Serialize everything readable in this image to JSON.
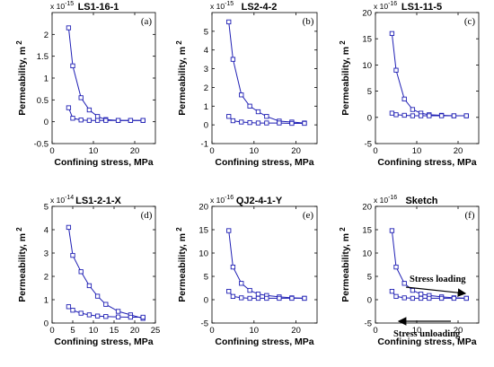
{
  "figure": {
    "panels": [
      {
        "title": "LS1-16-1",
        "tag": "(a)",
        "xlabel": "Confining stress, MPa",
        "ylabel": "Permeability, m",
        "ylabel_sup": "2",
        "exponent": "x 10",
        "exponent_power": "-15"
      },
      {
        "title": "LS2-4-2",
        "tag": "(b)",
        "xlabel": "Confining stress, MPa",
        "ylabel": "Permeability, m",
        "ylabel_sup": "2",
        "exponent": "x 10",
        "exponent_power": "-15"
      },
      {
        "title": "LS1-11-5",
        "tag": "(c)",
        "xlabel": "Confining stress, MPa",
        "ylabel": "Permeability, m",
        "ylabel_sup": "2",
        "exponent": "x 10",
        "exponent_power": "-16"
      },
      {
        "title": "LS1-2-1-X",
        "tag": "(d)",
        "xlabel": "Confining stress, MPa",
        "ylabel": "Permeability, m",
        "ylabel_sup": "2",
        "exponent": "x 10",
        "exponent_power": "-14"
      },
      {
        "title": "QJ2-4-1-Y",
        "tag": "(e)",
        "xlabel": "Confining stress, MPa",
        "ylabel": "Permeability, m",
        "ylabel_sup": "2",
        "exponent": "x 10",
        "exponent_power": "-16"
      },
      {
        "title": "Sketch",
        "tag": "(f)",
        "xlabel": "Confining stress, MPa",
        "ylabel": "Permeability, m",
        "ylabel_sup": "2",
        "exponent": "x 10",
        "exponent_power": "-16",
        "annotations": [
          {
            "text": "Stress loading"
          },
          {
            "text": "Stress unloading"
          }
        ]
      }
    ]
  },
  "chart_data": [
    {
      "type": "line",
      "title": "LS1-16-1",
      "xlabel": "Confining stress, MPa",
      "ylabel": "Permeability, m2",
      "xlim": [
        0,
        25
      ],
      "ylim": [
        -0.5,
        2.5
      ],
      "xticks": [
        0,
        10,
        20
      ],
      "yticks": [
        -0.5,
        0,
        0.5,
        1,
        1.5,
        2
      ],
      "ytick_labels": [
        "-0.5",
        "0",
        "0.5",
        "1",
        "1.5",
        "2"
      ],
      "series": [
        {
          "x": [
            4,
            5,
            7,
            9,
            11,
            13,
            16,
            19,
            22
          ],
          "y": [
            2.15,
            1.28,
            0.55,
            0.27,
            0.12,
            0.05,
            0.03,
            0.03,
            0.03
          ]
        },
        {
          "x": [
            4,
            5,
            7,
            9,
            11,
            13,
            16,
            19,
            22
          ],
          "y": [
            0.32,
            0.08,
            0.04,
            0.03,
            0.03,
            0.03,
            0.03,
            0.03,
            0.03
          ]
        }
      ],
      "marker": "square",
      "color": "#1f1fb4",
      "grid": false
    },
    {
      "type": "line",
      "title": "LS2-4-2",
      "xlabel": "Confining stress, MPa",
      "ylabel": "Permeability, m2",
      "xlim": [
        0,
        25
      ],
      "ylim": [
        -1,
        6
      ],
      "xticks": [
        0,
        10,
        20
      ],
      "yticks": [
        -1,
        0,
        1,
        2,
        3,
        4,
        5
      ],
      "ytick_labels": [
        "-1",
        "0",
        "1",
        "2",
        "3",
        "4",
        "5"
      ],
      "series": [
        {
          "x": [
            4,
            5,
            7,
            9,
            11,
            13,
            16,
            19,
            22
          ],
          "y": [
            5.5,
            3.5,
            1.6,
            1.0,
            0.7,
            0.45,
            0.2,
            0.15,
            0.1
          ]
        },
        {
          "x": [
            4,
            5,
            7,
            9,
            11,
            13,
            16,
            19,
            22
          ],
          "y": [
            0.45,
            0.22,
            0.15,
            0.12,
            0.1,
            0.1,
            0.1,
            0.08,
            0.08
          ]
        }
      ],
      "marker": "square",
      "color": "#1f1fb4",
      "grid": false
    },
    {
      "type": "line",
      "title": "LS1-11-5",
      "xlabel": "Confining stress, MPa",
      "ylabel": "Permeability, m2",
      "xlim": [
        0,
        25
      ],
      "ylim": [
        -5,
        20
      ],
      "xticks": [
        0,
        10,
        20
      ],
      "yticks": [
        -5,
        0,
        5,
        10,
        15,
        20
      ],
      "ytick_labels": [
        "-5",
        "0",
        "5",
        "10",
        "15",
        "20"
      ],
      "series": [
        {
          "x": [
            4,
            5,
            7,
            9,
            11,
            13,
            16,
            19,
            22
          ],
          "y": [
            16,
            9,
            3.5,
            1.5,
            0.8,
            0.5,
            0.4,
            0.3,
            0.3
          ]
        },
        {
          "x": [
            4,
            5,
            7,
            9,
            11,
            13,
            16,
            19,
            22
          ],
          "y": [
            0.8,
            0.5,
            0.4,
            0.3,
            0.3,
            0.3,
            0.3,
            0.3,
            0.3
          ]
        }
      ],
      "marker": "square",
      "color": "#1f1fb4",
      "grid": false
    },
    {
      "type": "line",
      "title": "LS1-2-1-X",
      "xlabel": "Confining stress, MPa",
      "ylabel": "Permeability, m2",
      "xlim": [
        0,
        25
      ],
      "ylim": [
        0,
        5
      ],
      "xticks": [
        0,
        5,
        10,
        15,
        20,
        25
      ],
      "yticks": [
        0,
        1,
        2,
        3,
        4,
        5
      ],
      "ytick_labels": [
        "0",
        "1",
        "2",
        "3",
        "4",
        "5"
      ],
      "series": [
        {
          "x": [
            4,
            5,
            7,
            9,
            11,
            13,
            16,
            19,
            22
          ],
          "y": [
            4.1,
            2.9,
            2.2,
            1.6,
            1.15,
            0.8,
            0.5,
            0.35,
            0.2
          ]
        },
        {
          "x": [
            4,
            5,
            7,
            9,
            11,
            13,
            16,
            19,
            22
          ],
          "y": [
            0.7,
            0.55,
            0.42,
            0.35,
            0.3,
            0.28,
            0.26,
            0.25,
            0.25
          ]
        }
      ],
      "marker": "square",
      "color": "#1f1fb4",
      "grid": false
    },
    {
      "type": "line",
      "title": "QJ2-4-1-Y",
      "xlabel": "Confining stress, MPa",
      "ylabel": "Permeability, m2",
      "xlim": [
        0,
        25
      ],
      "ylim": [
        -5,
        20
      ],
      "xticks": [
        0,
        10,
        20
      ],
      "yticks": [
        -5,
        0,
        5,
        10,
        15,
        20
      ],
      "ytick_labels": [
        "-5",
        "0",
        "5",
        "10",
        "15",
        "20"
      ],
      "series": [
        {
          "x": [
            4,
            5,
            7,
            9,
            11,
            13,
            16,
            19,
            22
          ],
          "y": [
            14.8,
            7,
            3.5,
            2,
            1.2,
            0.9,
            0.6,
            0.4,
            0.3
          ]
        },
        {
          "x": [
            4,
            5,
            7,
            9,
            11,
            13,
            16,
            19,
            22
          ],
          "y": [
            1.8,
            0.7,
            0.4,
            0.3,
            0.3,
            0.3,
            0.3,
            0.3,
            0.3
          ]
        }
      ],
      "marker": "square",
      "color": "#1f1fb4",
      "grid": false
    },
    {
      "type": "line",
      "title": "Sketch",
      "xlabel": "Confining stress, MPa",
      "ylabel": "Permeability, m2",
      "xlim": [
        0,
        25
      ],
      "ylim": [
        -5,
        20
      ],
      "xticks": [
        0,
        10,
        20
      ],
      "yticks": [
        -5,
        0,
        5,
        10,
        15,
        20
      ],
      "ytick_labels": [
        "-5",
        "0",
        "5",
        "10",
        "15",
        "20"
      ],
      "series": [
        {
          "x": [
            4,
            5,
            7,
            9,
            11,
            13,
            16,
            19,
            22
          ],
          "y": [
            14.8,
            7,
            3.5,
            2,
            1.2,
            0.9,
            0.6,
            0.4,
            0.3
          ]
        },
        {
          "x": [
            4,
            5,
            7,
            9,
            11,
            13,
            16,
            19,
            22
          ],
          "y": [
            1.8,
            0.7,
            0.4,
            0.3,
            0.3,
            0.3,
            0.3,
            0.3,
            0.3
          ]
        }
      ],
      "marker": "square",
      "color": "#1f1fb4",
      "grid": false,
      "annotations": [
        "Stress loading",
        "Stress unloading"
      ]
    }
  ]
}
